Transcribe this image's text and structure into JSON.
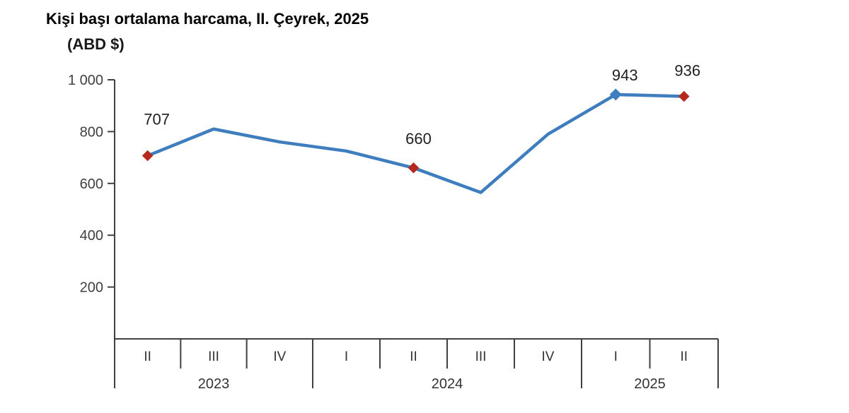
{
  "header": {
    "title": "Kişi başı ortalama harcama, II. Çeyrek, 2025",
    "unit_label": "(ABD $)"
  },
  "chart_data": {
    "type": "line",
    "title": "Kişi başı ortalama harcama, II. Çeyrek, 2025",
    "unit_label": "(ABD $)",
    "ylim": [
      0,
      1000
    ],
    "grid": false,
    "legend": false,
    "ytick_values": [
      200,
      400,
      600,
      800,
      1000
    ],
    "ytick_labels": [
      "200",
      "400",
      "600",
      "800",
      "1 000"
    ],
    "x_groups": [
      {
        "year": "2023",
        "quarters": [
          "II",
          "III",
          "IV"
        ]
      },
      {
        "year": "2024",
        "quarters": [
          "I",
          "II",
          "III",
          "IV"
        ]
      },
      {
        "year": "2025",
        "quarters": [
          "I",
          "II"
        ]
      }
    ],
    "series": [
      {
        "name": "Kişi başı ortalama harcama (ABD $)",
        "values": [
          707,
          810,
          760,
          725,
          660,
          565,
          790,
          943,
          936
        ]
      }
    ],
    "point_labels": [
      {
        "index": 0,
        "text": "707",
        "marker_color": "#b5281d"
      },
      {
        "index": 4,
        "text": "660",
        "marker_color": "#b5281d"
      },
      {
        "index": 7,
        "text": "943",
        "marker_color": "#3e7dbe"
      },
      {
        "index": 8,
        "text": "936",
        "marker_color": "#b5281d"
      }
    ],
    "line_color": "#3e7dbe",
    "axis_color": "#404040",
    "marker_red": "#b5281d",
    "marker_blue": "#3e7dbe"
  }
}
